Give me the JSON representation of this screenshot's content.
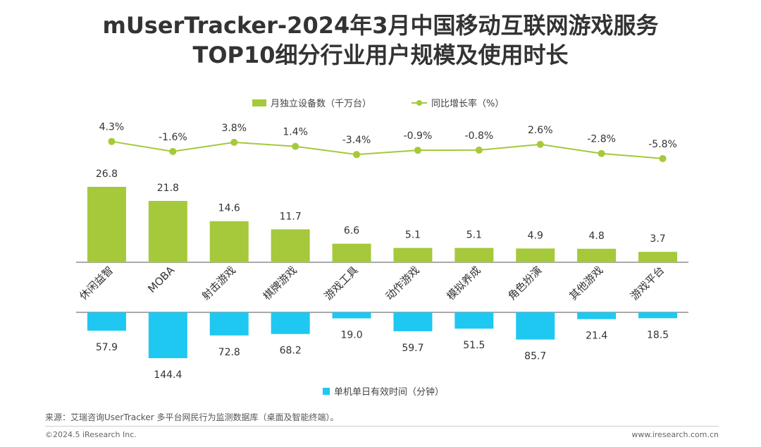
{
  "title": {
    "line1": "mUserTracker-2024年3月中国移动互联网游戏服务",
    "line2": "TOP10细分行业用户规模及使用时长"
  },
  "legend": {
    "bar_label": "月独立设备数（千万台）",
    "line_label": "同比增长率（%）",
    "time_label": "单机单日有效时间（分钟）"
  },
  "colors": {
    "bar": "#a5c93a",
    "line": "#a5c93a",
    "time_bar": "#1ec8f0",
    "axis": "#555555"
  },
  "chart_data": {
    "type": "bar",
    "title": "mUserTracker-2024年3月中国移动互联网游戏服务TOP10细分行业用户规模及使用时长",
    "categories": [
      "休闲益智",
      "MOBA",
      "射击游戏",
      "棋牌游戏",
      "游戏工具",
      "动作游戏",
      "模拟养成",
      "角色扮演",
      "其他游戏",
      "游戏平台"
    ],
    "series": [
      {
        "name": "月独立设备数（千万台）",
        "type": "bar",
        "values": [
          26.8,
          21.8,
          14.6,
          11.7,
          6.6,
          5.1,
          5.1,
          4.9,
          4.8,
          3.7
        ],
        "labels": [
          "26.8",
          "21.8",
          "14.6",
          "11.7",
          "6.6",
          "5.1",
          "5.1",
          "4.9",
          "4.8",
          "3.7"
        ]
      },
      {
        "name": "同比增长率（%）",
        "type": "line",
        "values": [
          4.3,
          -1.6,
          3.8,
          1.4,
          -3.4,
          -0.9,
          -0.8,
          2.6,
          -2.8,
          -5.8
        ],
        "labels": [
          "4.3%",
          "-1.6%",
          "3.8%",
          "1.4%",
          "-3.4%",
          "-0.9%",
          "-0.8%",
          "2.6%",
          "-2.8%",
          "-5.8%"
        ]
      },
      {
        "name": "单机单日有效时间（分钟）",
        "type": "bar",
        "direction": "down",
        "values": [
          57.9,
          144.4,
          72.8,
          68.2,
          19.0,
          59.7,
          51.5,
          85.7,
          21.4,
          18.5
        ],
        "labels": [
          "57.9",
          "144.4",
          "72.8",
          "68.2",
          "19.0",
          "59.7",
          "51.5",
          "85.7",
          "21.4",
          "18.5"
        ]
      }
    ],
    "ylim_bar": [
      0,
      30
    ],
    "ylim_line": [
      -10,
      10
    ],
    "ylim_time": [
      0,
      160
    ]
  },
  "source": "来源：艾瑞咨询UserTracker 多平台网民行为监测数据库（桌面及智能终端）。",
  "copyright": "©2024.5 iResearch Inc.",
  "website": "www.iresearch.com.cn"
}
